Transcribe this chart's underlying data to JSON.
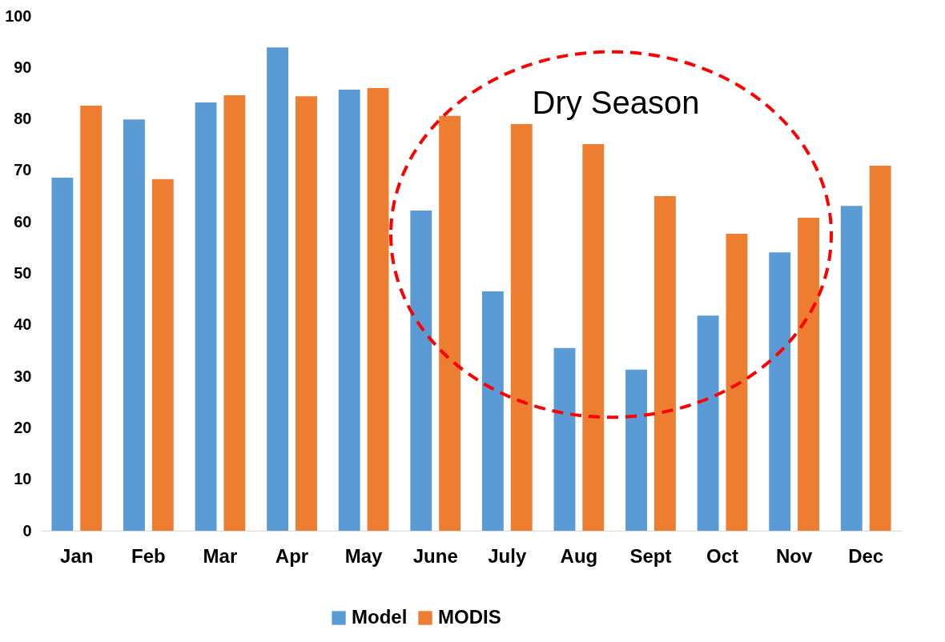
{
  "chart_data": {
    "type": "bar",
    "categories": [
      "Jan",
      "Feb",
      "Mar",
      "Apr",
      "May",
      "June",
      "July",
      "Aug",
      "Sept",
      "Oct",
      "Nov",
      "Dec"
    ],
    "series": [
      {
        "name": "Model",
        "color": "#5b9bd5",
        "values": [
          68.6,
          79.9,
          83.2,
          93.9,
          85.7,
          62.2,
          46.5,
          35.5,
          31.3,
          41.8,
          54.1,
          63.1
        ]
      },
      {
        "name": "MODIS",
        "color": "#ed7d31",
        "values": [
          82.6,
          68.3,
          84.6,
          84.4,
          86.0,
          80.6,
          79.0,
          75.1,
          65.0,
          57.7,
          60.8,
          70.9
        ]
      }
    ],
    "ylim": [
      0,
      100
    ],
    "yticks": [
      0,
      10,
      20,
      30,
      40,
      50,
      60,
      70,
      80,
      90,
      100
    ],
    "grid": false,
    "legend": "bottom",
    "annotations": [
      "Dry Season"
    ]
  }
}
